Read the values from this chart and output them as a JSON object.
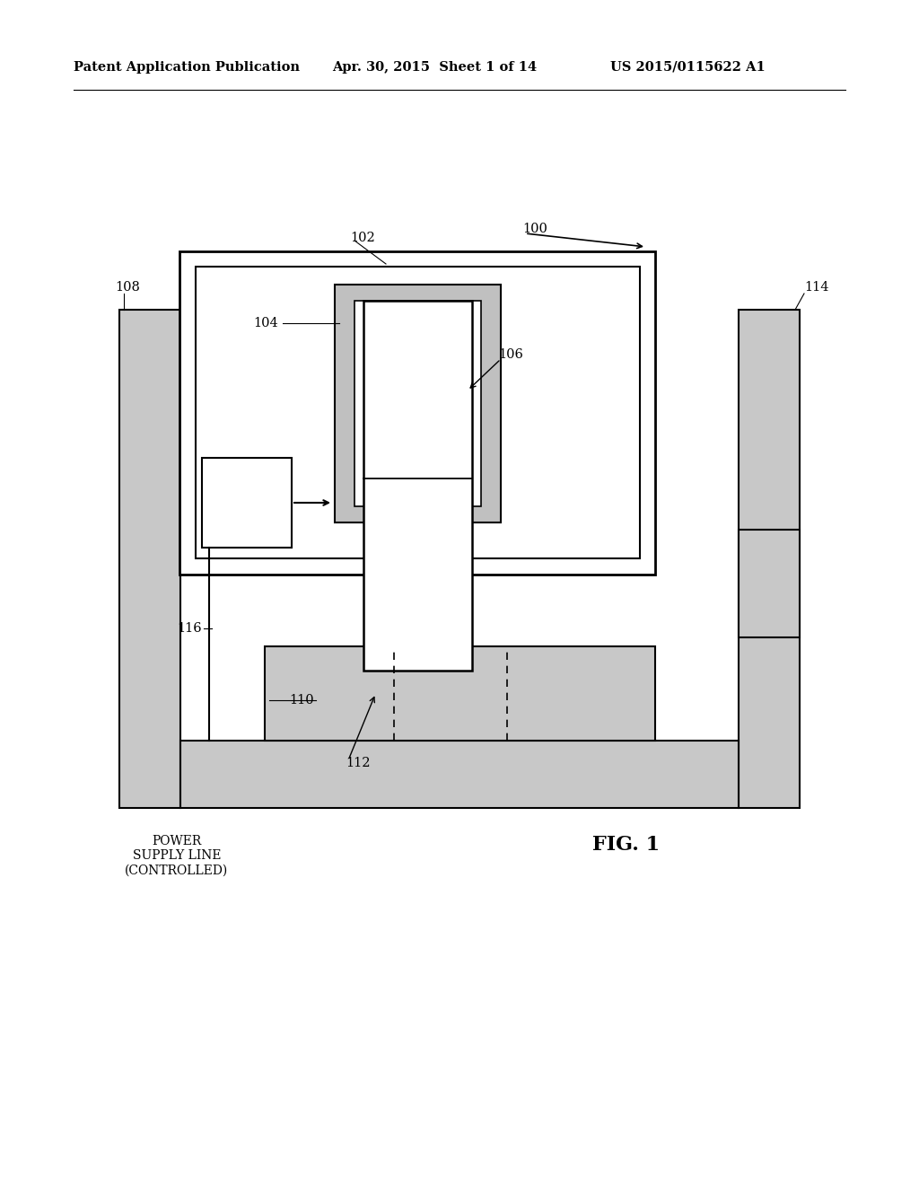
{
  "bg_color": "#ffffff",
  "header_line1": "Patent Application Publication",
  "header_line2": "Apr. 30, 2015  Sheet 1 of 14",
  "header_line3": "US 2015/0115622 A1",
  "fig_label": "FIG. 1",
  "caption": "POWER\nSUPPLY LINE\n(CONTROLLED)",
  "gray_pillar": "#c8c8c8",
  "gray_solenoid": "#c0c0c0",
  "gray_bottom": "#c8c8c8",
  "outline_color": "#000000"
}
